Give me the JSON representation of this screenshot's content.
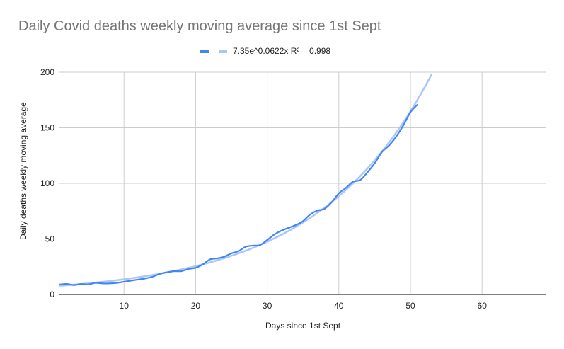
{
  "chart_data": {
    "type": "line",
    "title": "Daily Covid deaths weekly moving average since 1st Sept",
    "xlabel": "Days since 1st Sept",
    "ylabel": "Daily deaths weekly moving average",
    "xlim": [
      1,
      69
    ],
    "ylim": [
      0,
      200
    ],
    "x_ticks": [
      10,
      20,
      30,
      40,
      50,
      60
    ],
    "y_ticks": [
      0,
      50,
      100,
      150,
      200
    ],
    "grid": true,
    "legend_position": "top",
    "series": [
      {
        "name": "",
        "color": "#4285f4",
        "x": [
          1,
          2,
          3,
          4,
          5,
          6,
          7,
          8,
          9,
          10,
          11,
          12,
          13,
          14,
          15,
          16,
          17,
          18,
          19,
          20,
          21,
          22,
          23,
          24,
          25,
          26,
          27,
          28,
          29,
          30,
          31,
          32,
          33,
          34,
          35,
          36,
          37,
          38,
          39,
          40,
          41,
          42,
          43,
          44,
          45,
          46,
          47,
          48,
          49,
          50,
          51
        ],
        "values": [
          9,
          9.5,
          8.5,
          9.5,
          9,
          10.5,
          10,
          10,
          10.5,
          11.5,
          12.5,
          13.5,
          14.5,
          16,
          18.5,
          20,
          21,
          21,
          23,
          24,
          27,
          31.5,
          32.5,
          34,
          37,
          39,
          43,
          44,
          44.5,
          49,
          54,
          57.5,
          60,
          62.5,
          66,
          72,
          75.5,
          77,
          83,
          91,
          96,
          101.5,
          103,
          110,
          118,
          128,
          134,
          142,
          152,
          164,
          171
        ]
      },
      {
        "name": "7.35e^0.0622x R² = 0.998",
        "type": "trendline",
        "color": "#a9c8f7",
        "formula": {
          "a": 7.35,
          "b": 0.0622
        },
        "x_range": [
          1,
          53.2
        ]
      }
    ]
  },
  "legend": {
    "series1_label": "",
    "trend_label": "7.35e^0.0622x R² = 0.998"
  },
  "axes": {
    "y_ticks": [
      "0",
      "50",
      "100",
      "150",
      "200"
    ],
    "x_ticks": [
      "10",
      "20",
      "30",
      "40",
      "50",
      "60"
    ]
  }
}
